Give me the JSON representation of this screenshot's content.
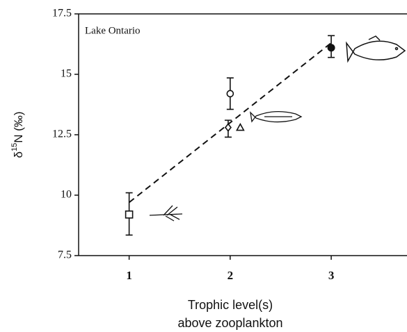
{
  "chart_data": {
    "type": "scatter",
    "annotation": "Lake Ontario",
    "ylabel_parts": [
      "δ",
      "15",
      "N (‰)"
    ],
    "xlabel_lines": [
      "Trophic level(s)",
      "above zooplankton"
    ],
    "xlim": [
      0.5,
      3.75
    ],
    "ylim": [
      7.5,
      17.5
    ],
    "xticks": [
      1,
      2,
      3
    ],
    "yticks": [
      7.5,
      10,
      12.5,
      15,
      17.5
    ],
    "series": [
      {
        "marker": "square",
        "x": 1,
        "y": 9.2,
        "error": [
          8.35,
          10.1
        ]
      },
      {
        "marker": "circle",
        "x": 2,
        "y": 14.2,
        "error": [
          13.55,
          14.85
        ]
      },
      {
        "marker": "diamond",
        "x": 1.98,
        "y": 12.8,
        "error": [
          12.4,
          13.1
        ]
      },
      {
        "marker": "triangle",
        "x": 2.1,
        "y": 12.8
      },
      {
        "marker": "filled-circle",
        "x": 3,
        "y": 16.1,
        "error": [
          15.7,
          16.6
        ]
      }
    ],
    "trend_line": {
      "x": [
        1,
        3
      ],
      "y": [
        9.7,
        16.3
      ]
    }
  }
}
